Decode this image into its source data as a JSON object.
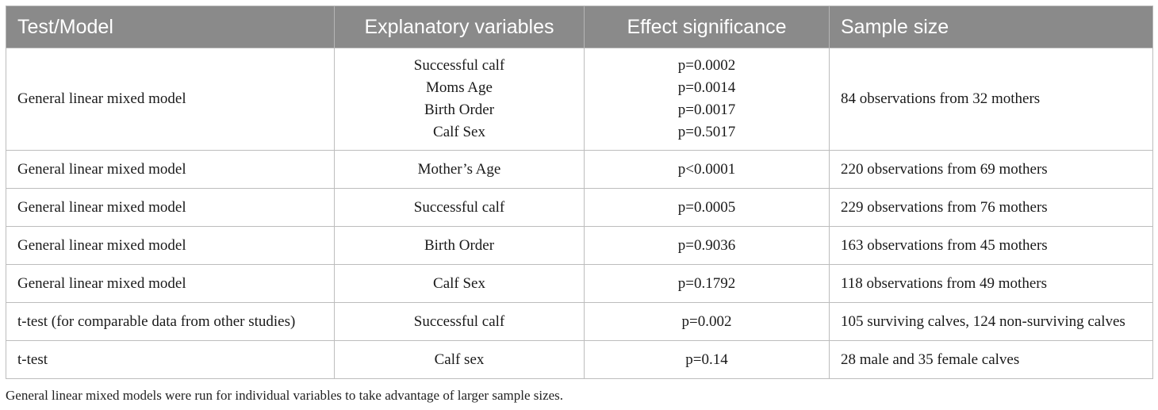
{
  "table": {
    "headers": [
      "Test/Model",
      "Explanatory variables",
      "Effect significance",
      "Sample size"
    ],
    "rows": [
      {
        "test": "General linear mixed model",
        "variables": [
          "Successful calf",
          "Moms Age",
          "Birth Order",
          "Calf Sex"
        ],
        "significance": [
          "p=0.0002",
          "p=0.0014",
          "p=0.0017",
          "p=0.5017"
        ],
        "sample": "84 observations from 32 mothers"
      },
      {
        "test": "General linear mixed model",
        "variables": [
          "Mother’s Age"
        ],
        "significance": [
          "p<0.0001"
        ],
        "sample": "220 observations from 69 mothers"
      },
      {
        "test": "General linear mixed model",
        "variables": [
          "Successful calf"
        ],
        "significance": [
          "p=0.0005"
        ],
        "sample": "229 observations from 76 mothers"
      },
      {
        "test": "General linear mixed model",
        "variables": [
          "Birth Order"
        ],
        "significance": [
          "p=0.9036"
        ],
        "sample": "163 observations from 45 mothers"
      },
      {
        "test": "General linear mixed model",
        "variables": [
          "Calf Sex"
        ],
        "significance": [
          "p=0.1792"
        ],
        "sample": "118 observations from 49 mothers"
      },
      {
        "test": "t-test (for comparable data from other studies)",
        "variables": [
          "Successful calf"
        ],
        "significance": [
          "p=0.002"
        ],
        "sample": "105 surviving calves, 124 non-surviving calves"
      },
      {
        "test": "t-test",
        "variables": [
          "Calf sex"
        ],
        "significance": [
          "p=0.14"
        ],
        "sample": "28 male and 35 female calves"
      }
    ]
  },
  "footnote": "General linear mixed models were run for individual variables to take advantage of larger sample sizes."
}
